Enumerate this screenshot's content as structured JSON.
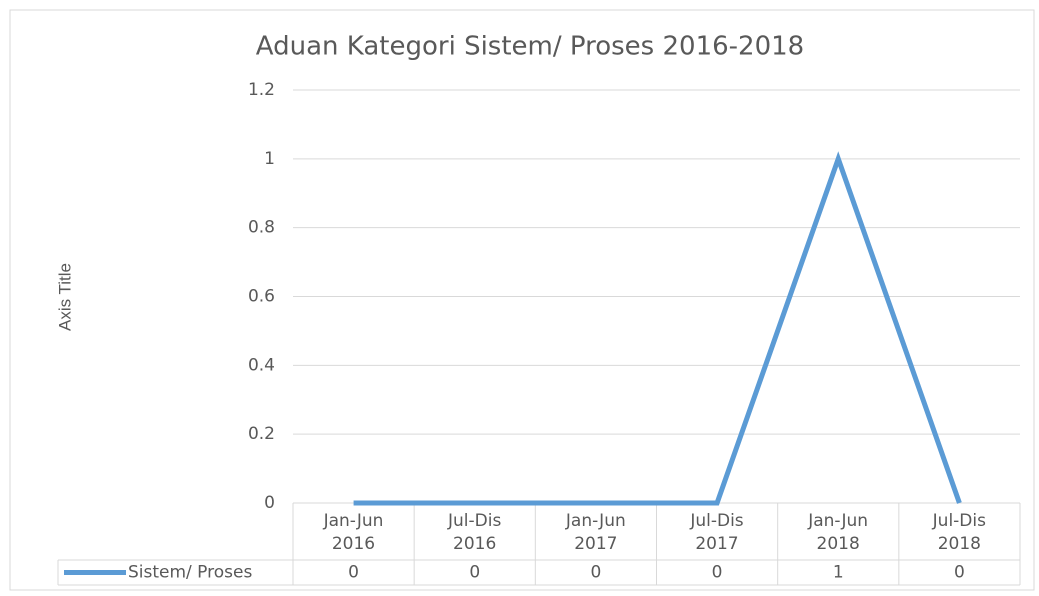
{
  "chart_data": {
    "type": "line",
    "title": "Aduan Kategori Sistem/ Proses 2016-2018",
    "y_label": "Axis Title",
    "categories": [
      "Jan-Jun 2016",
      "Jul-Dis 2016",
      "Jan-Jun 2017",
      "Jul-Dis 2017",
      "Jan-Jun 2018",
      "Jul-Dis 2018"
    ],
    "series": [
      {
        "name": "Sistem/ Proses",
        "color": "#5b9bd5",
        "values": [
          0,
          0,
          0,
          0,
          1,
          0
        ]
      }
    ],
    "ylim": [
      0,
      1.2
    ],
    "yticks": [
      0,
      0.2,
      0.4,
      0.6,
      0.8,
      1,
      1.2
    ],
    "grid": true,
    "data_table": true
  }
}
